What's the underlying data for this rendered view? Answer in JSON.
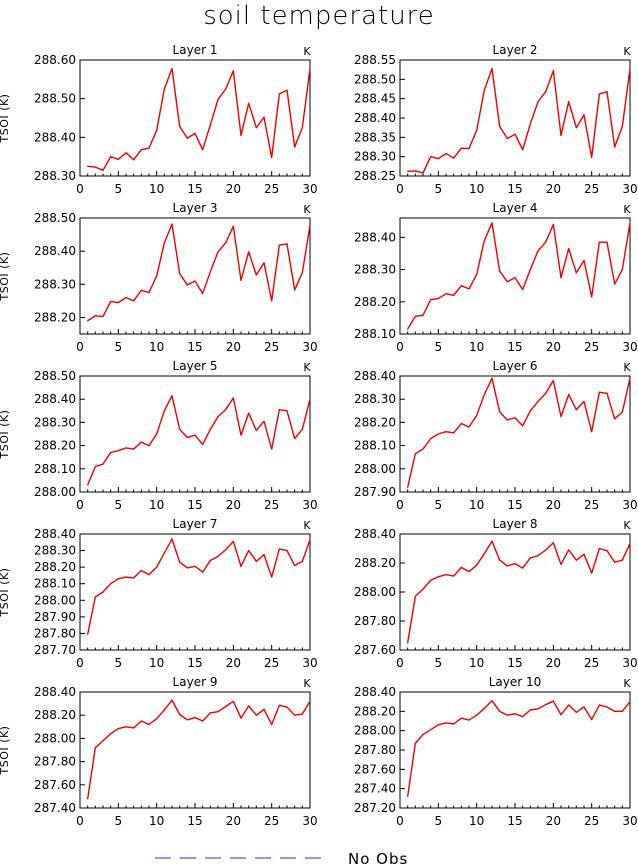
{
  "figure": {
    "title": "soil temperature",
    "legend": {
      "label": "No Obs",
      "line_color": "#5555ff",
      "line_style": "dashed"
    }
  },
  "colors": {
    "series": "#ee0000",
    "axis": "#000000"
  },
  "chart_data": [
    {
      "type": "line",
      "title": "Layer 1",
      "ylabel": "TSOI (K)",
      "unit": "K",
      "xlim": [
        0,
        30
      ],
      "xticks": [
        0,
        5,
        10,
        15,
        20,
        25,
        30
      ],
      "ylim": [
        288.3,
        288.6
      ],
      "yticks": [
        "288.30",
        "288.40",
        "288.50",
        "288.60"
      ],
      "series": [
        {
          "x": [
            1,
            2,
            3,
            4,
            5,
            6,
            7,
            8,
            9,
            10,
            11,
            12,
            13,
            14,
            15,
            16,
            17,
            18,
            19,
            20,
            21,
            22,
            23,
            24,
            25,
            26,
            27,
            28,
            29,
            30
          ],
          "values": [
            288.325,
            288.323,
            288.315,
            288.35,
            288.343,
            288.36,
            288.342,
            288.368,
            288.372,
            288.418,
            288.525,
            288.578,
            288.428,
            288.398,
            288.41,
            288.368,
            288.432,
            288.498,
            288.525,
            288.572,
            288.405,
            288.488,
            288.425,
            288.452,
            288.348,
            288.512,
            288.522,
            288.375,
            288.425,
            288.578
          ]
        }
      ]
    },
    {
      "type": "line",
      "title": "Layer 2",
      "ylabel": "",
      "unit": "K",
      "xlim": [
        0,
        30
      ],
      "xticks": [
        0,
        5,
        10,
        15,
        20,
        25,
        30
      ],
      "ylim": [
        288.25,
        288.55
      ],
      "yticks": [
        "288.25",
        "288.30",
        "288.35",
        "288.40",
        "288.45",
        "288.50",
        "288.55"
      ],
      "series": [
        {
          "x": [
            1,
            2,
            3,
            4,
            5,
            6,
            7,
            8,
            9,
            10,
            11,
            12,
            13,
            14,
            15,
            16,
            17,
            18,
            19,
            20,
            21,
            22,
            23,
            24,
            25,
            26,
            27,
            28,
            29,
            30
          ],
          "values": [
            288.262,
            288.263,
            288.258,
            288.3,
            288.295,
            288.308,
            288.296,
            288.322,
            288.321,
            288.368,
            288.472,
            288.528,
            288.378,
            288.347,
            288.358,
            288.318,
            288.385,
            288.442,
            288.468,
            288.522,
            288.355,
            288.442,
            288.375,
            288.408,
            288.298,
            288.462,
            288.468,
            288.325,
            288.378,
            288.528
          ]
        }
      ]
    },
    {
      "type": "line",
      "title": "Layer 3",
      "ylabel": "TSOI (K)",
      "unit": "K",
      "xlim": [
        0,
        30
      ],
      "xticks": [
        0,
        5,
        10,
        15,
        20,
        25,
        30
      ],
      "ylim": [
        288.15,
        288.5
      ],
      "yticks": [
        "288.20",
        "288.30",
        "288.40",
        "288.50"
      ],
      "series": [
        {
          "x": [
            1,
            2,
            3,
            4,
            5,
            6,
            7,
            8,
            9,
            10,
            11,
            12,
            13,
            14,
            15,
            16,
            17,
            18,
            19,
            20,
            21,
            22,
            23,
            24,
            25,
            26,
            27,
            28,
            29,
            30
          ],
          "values": [
            288.19,
            288.205,
            288.203,
            288.248,
            288.245,
            288.26,
            288.25,
            288.282,
            288.275,
            288.325,
            288.425,
            288.482,
            288.332,
            288.298,
            288.31,
            288.272,
            288.338,
            288.398,
            288.425,
            288.475,
            288.312,
            288.398,
            288.328,
            288.365,
            288.25,
            288.418,
            288.422,
            288.283,
            288.335,
            288.478
          ]
        }
      ]
    },
    {
      "type": "line",
      "title": "Layer 4",
      "ylabel": "",
      "unit": "K",
      "xlim": [
        0,
        30
      ],
      "xticks": [
        0,
        5,
        10,
        15,
        20,
        25,
        30
      ],
      "ylim": [
        288.1,
        288.46
      ],
      "yticks": [
        "288.10",
        "288.20",
        "288.30",
        "288.40"
      ],
      "series": [
        {
          "x": [
            1,
            2,
            3,
            4,
            5,
            6,
            7,
            8,
            9,
            10,
            11,
            12,
            13,
            14,
            15,
            16,
            17,
            18,
            19,
            20,
            21,
            22,
            23,
            24,
            25,
            26,
            27,
            28,
            29,
            30
          ],
          "values": [
            288.115,
            288.155,
            288.158,
            288.207,
            288.21,
            288.225,
            288.22,
            288.25,
            288.24,
            288.285,
            288.39,
            288.445,
            288.295,
            288.262,
            288.275,
            288.238,
            288.3,
            288.358,
            288.385,
            288.44,
            288.275,
            288.365,
            288.29,
            288.328,
            288.215,
            288.385,
            288.385,
            288.255,
            288.3,
            288.445
          ]
        }
      ]
    },
    {
      "type": "line",
      "title": "Layer 5",
      "ylabel": "TSOI (K)",
      "unit": "K",
      "xlim": [
        0,
        30
      ],
      "xticks": [
        0,
        5,
        10,
        15,
        20,
        25,
        30
      ],
      "ylim": [
        288.0,
        288.5
      ],
      "yticks": [
        "288.00",
        "288.10",
        "288.20",
        "288.30",
        "288.40",
        "288.50"
      ],
      "series": [
        {
          "x": [
            1,
            2,
            3,
            4,
            5,
            6,
            7,
            8,
            9,
            10,
            11,
            12,
            13,
            14,
            15,
            16,
            17,
            18,
            19,
            20,
            21,
            22,
            23,
            24,
            25,
            26,
            27,
            28,
            29,
            30
          ],
          "values": [
            288.03,
            288.11,
            288.12,
            288.17,
            288.178,
            288.19,
            288.185,
            288.215,
            288.2,
            288.25,
            288.35,
            288.415,
            288.27,
            288.235,
            288.245,
            288.205,
            288.27,
            288.325,
            288.355,
            288.405,
            288.245,
            288.34,
            288.265,
            288.305,
            288.185,
            288.355,
            288.35,
            288.23,
            288.27,
            288.4
          ]
        }
      ]
    },
    {
      "type": "line",
      "title": "Layer 6",
      "ylabel": "",
      "unit": "K",
      "xlim": [
        0,
        30
      ],
      "xticks": [
        0,
        5,
        10,
        15,
        20,
        25,
        30
      ],
      "ylim": [
        287.9,
        288.4
      ],
      "yticks": [
        "287.90",
        "288.00",
        "288.10",
        "288.20",
        "288.30",
        "288.40"
      ],
      "series": [
        {
          "x": [
            1,
            2,
            3,
            4,
            5,
            6,
            7,
            8,
            9,
            10,
            11,
            12,
            13,
            14,
            15,
            16,
            17,
            18,
            19,
            20,
            21,
            22,
            23,
            24,
            25,
            26,
            27,
            28,
            29,
            30
          ],
          "values": [
            287.92,
            288.065,
            288.085,
            288.13,
            288.15,
            288.16,
            288.155,
            288.195,
            288.18,
            288.23,
            288.32,
            288.39,
            288.245,
            288.21,
            288.22,
            288.185,
            288.25,
            288.29,
            288.325,
            288.38,
            288.225,
            288.32,
            288.255,
            288.29,
            288.16,
            288.33,
            288.325,
            288.215,
            288.245,
            288.39
          ]
        }
      ]
    },
    {
      "type": "line",
      "title": "Layer 7",
      "ylabel": "TSOI (K)",
      "unit": "K",
      "xlim": [
        0,
        30
      ],
      "xticks": [
        0,
        5,
        10,
        15,
        20,
        25,
        30
      ],
      "ylim": [
        287.7,
        288.4
      ],
      "yticks": [
        "287.70",
        "287.80",
        "287.90",
        "288.00",
        "288.10",
        "288.20",
        "288.30",
        "288.40"
      ],
      "series": [
        {
          "x": [
            1,
            2,
            3,
            4,
            5,
            6,
            7,
            8,
            9,
            10,
            11,
            12,
            13,
            14,
            15,
            16,
            17,
            18,
            19,
            20,
            21,
            22,
            23,
            24,
            25,
            26,
            27,
            28,
            29,
            30
          ],
          "values": [
            287.795,
            288.02,
            288.05,
            288.1,
            288.13,
            288.14,
            288.135,
            288.18,
            288.155,
            288.2,
            288.285,
            288.37,
            288.23,
            288.195,
            288.205,
            288.17,
            288.24,
            288.265,
            288.305,
            288.355,
            288.205,
            288.3,
            288.235,
            288.275,
            288.14,
            288.31,
            288.3,
            288.21,
            288.235,
            288.365
          ]
        }
      ]
    },
    {
      "type": "line",
      "title": "Layer 8",
      "ylabel": "",
      "unit": "K",
      "xlim": [
        0,
        30
      ],
      "xticks": [
        0,
        5,
        10,
        15,
        20,
        25,
        30
      ],
      "ylim": [
        287.6,
        288.4
      ],
      "yticks": [
        "287.60",
        "287.80",
        "288.00",
        "288.20",
        "288.40"
      ],
      "series": [
        {
          "x": [
            1,
            2,
            3,
            4,
            5,
            6,
            7,
            8,
            9,
            10,
            11,
            12,
            13,
            14,
            15,
            16,
            17,
            18,
            19,
            20,
            21,
            22,
            23,
            24,
            25,
            26,
            27,
            28,
            29,
            30
          ],
          "values": [
            287.65,
            287.97,
            288.02,
            288.08,
            288.105,
            288.12,
            288.11,
            288.17,
            288.14,
            288.185,
            288.265,
            288.35,
            288.22,
            288.18,
            288.195,
            288.165,
            288.235,
            288.25,
            288.29,
            288.34,
            288.19,
            288.29,
            288.22,
            288.26,
            288.13,
            288.3,
            288.285,
            288.205,
            288.22,
            288.335
          ]
        }
      ]
    },
    {
      "type": "line",
      "title": "Layer 9",
      "ylabel": "TSOI (K)",
      "unit": "K",
      "xlim": [
        0,
        30
      ],
      "xticks": [
        0,
        5,
        10,
        15,
        20,
        25,
        30
      ],
      "ylim": [
        287.4,
        288.4
      ],
      "yticks": [
        "287.40",
        "287.60",
        "287.80",
        "288.00",
        "288.20",
        "288.40"
      ],
      "series": [
        {
          "x": [
            1,
            2,
            3,
            4,
            5,
            6,
            7,
            8,
            9,
            10,
            11,
            12,
            13,
            14,
            15,
            16,
            17,
            18,
            19,
            20,
            21,
            22,
            23,
            24,
            25,
            26,
            27,
            28,
            29,
            30
          ],
          "values": [
            287.48,
            287.92,
            287.98,
            288.04,
            288.085,
            288.1,
            288.09,
            288.15,
            288.12,
            288.17,
            288.245,
            288.33,
            288.205,
            288.16,
            288.18,
            288.15,
            288.22,
            288.23,
            288.275,
            288.32,
            288.175,
            288.28,
            288.2,
            288.25,
            288.12,
            288.285,
            288.27,
            288.2,
            288.21,
            288.32
          ]
        }
      ]
    },
    {
      "type": "line",
      "title": "Layer 10",
      "ylabel": "",
      "unit": "K",
      "xlim": [
        0,
        30
      ],
      "xticks": [
        0,
        5,
        10,
        15,
        20,
        25,
        30
      ],
      "ylim": [
        287.2,
        288.4
      ],
      "yticks": [
        "287.20",
        "287.40",
        "287.60",
        "287.80",
        "288.00",
        "288.20",
        "288.40"
      ],
      "series": [
        {
          "x": [
            1,
            2,
            3,
            4,
            5,
            6,
            7,
            8,
            9,
            10,
            11,
            12,
            13,
            14,
            15,
            16,
            17,
            18,
            19,
            20,
            21,
            22,
            23,
            24,
            25,
            26,
            27,
            28,
            29,
            30
          ],
          "values": [
            287.32,
            287.87,
            287.96,
            288.01,
            288.06,
            288.08,
            288.07,
            288.13,
            288.11,
            288.16,
            288.23,
            288.31,
            288.2,
            288.16,
            288.175,
            288.145,
            288.215,
            288.225,
            288.27,
            288.305,
            288.165,
            288.265,
            288.19,
            288.245,
            288.115,
            288.265,
            288.245,
            288.2,
            288.2,
            288.3
          ]
        }
      ]
    }
  ]
}
